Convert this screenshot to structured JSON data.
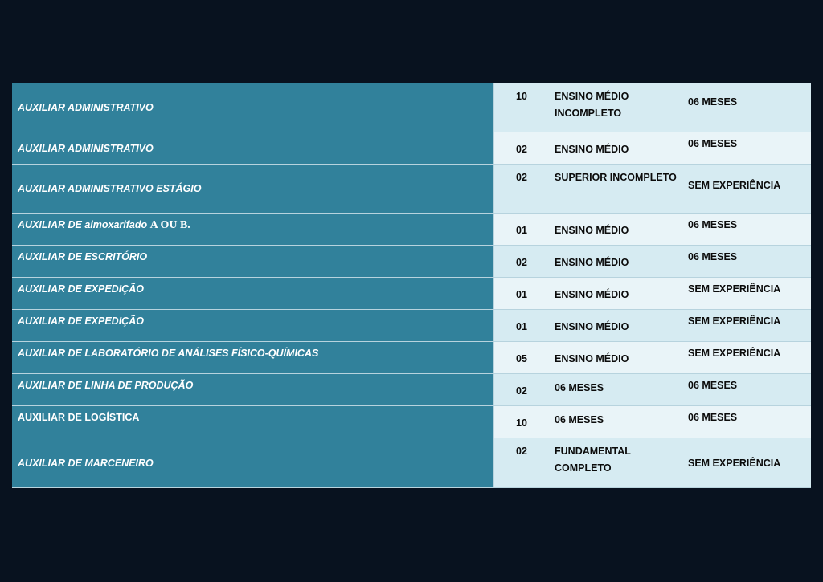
{
  "rows": [
    {
      "role": "AUXILIAR ADMINISTRATIVO",
      "vacancies": "10",
      "education": "ENSINO MÉDIO INCOMPLETO",
      "experience": "06 MESES"
    },
    {
      "role": "AUXILIAR ADMINISTRATIVO",
      "vacancies": "02",
      "education": "ENSINO MÉDIO",
      "experience": "06 MESES"
    },
    {
      "role": "AUXILIAR ADMINISTRATIVO ESTÁGIO",
      "vacancies": "02",
      "education": "SUPERIOR INCOMPLETO",
      "experience": "SEM EXPERIÊNCIA"
    },
    {
      "role": "AUXILIAR DE almoxarifado",
      "role_suffix": "A OU B.",
      "vacancies": "01",
      "education": "ENSINO MÉDIO",
      "experience": "06 MESES"
    },
    {
      "role": "AUXILIAR DE ESCRITÓRIO",
      "vacancies": "02",
      "education": "ENSINO MÉDIO",
      "experience": "06 MESES"
    },
    {
      "role": "AUXILIAR DE EXPEDIÇÃO",
      "vacancies": "01",
      "education": "ENSINO MÉDIO",
      "experience": "SEM EXPERIÊNCIA"
    },
    {
      "role": "AUXILIAR DE EXPEDIÇÃO",
      "vacancies": "01",
      "education": "ENSINO MÉDIO",
      "experience": "SEM EXPERIÊNCIA"
    },
    {
      "role": "AUXILIAR DE LABORATÓRIO DE ANÁLISES FÍSICO-QUÍMICAS",
      "vacancies": "05",
      "education": "ENSINO MÉDIO",
      "experience": "SEM EXPERIÊNCIA"
    },
    {
      "role": "AUXILIAR DE LINHA DE PRODUÇÃO",
      "vacancies": "02",
      "education": "06 MESES",
      "experience": "06 MESES"
    },
    {
      "role": "AUXILIAR DE LOGÍSTICA",
      "vacancies": "10",
      "education": "06 MESES",
      "experience": "06 MESES"
    },
    {
      "role": "AUXILIAR DE MARCENEIRO",
      "vacancies": "02",
      "education": "FUNDAMENTAL COMPLETO",
      "experience": "SEM EXPERIÊNCIA"
    }
  ]
}
